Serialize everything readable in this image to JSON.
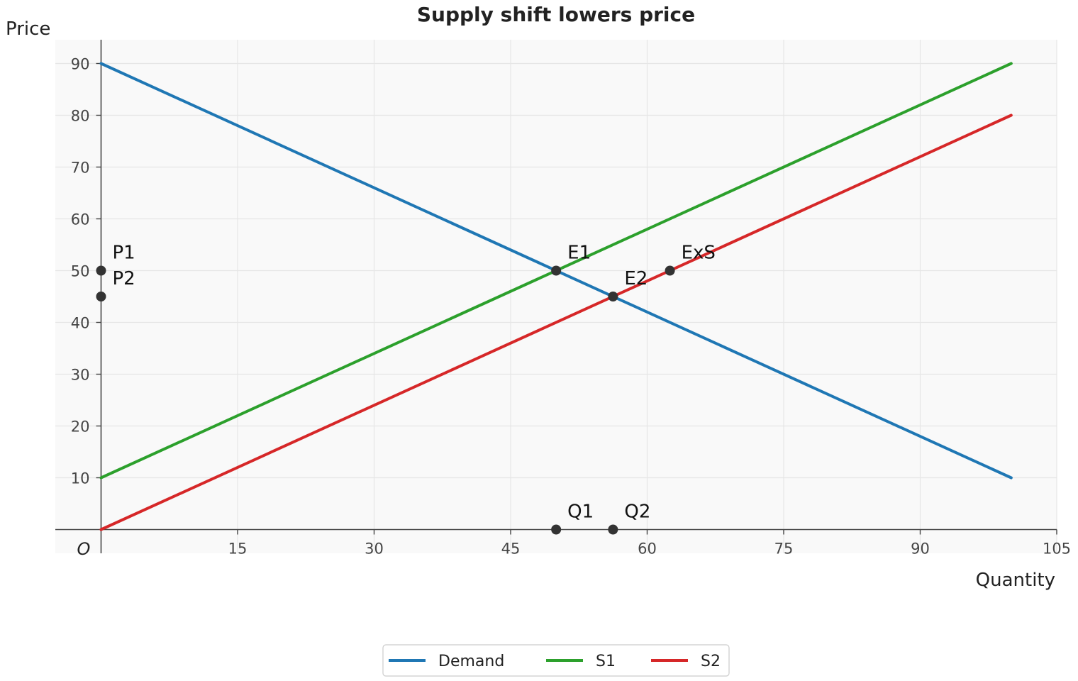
{
  "chart_data": {
    "type": "line",
    "title": "Supply shift lowers price",
    "xlabel": "Quantity",
    "ylabel": "Price",
    "origin_label": "O",
    "xlim": [
      0,
      105
    ],
    "ylim": [
      0,
      95
    ],
    "x_ticks": [
      15,
      30,
      45,
      60,
      75,
      90,
      105
    ],
    "y_ticks": [
      10,
      20,
      30,
      40,
      50,
      60,
      70,
      80,
      90
    ],
    "grid": true,
    "legend_position": "bottom-center",
    "series": [
      {
        "name": "Demand",
        "color": "#1f77b4",
        "x": [
          0,
          100
        ],
        "y": [
          90,
          10
        ]
      },
      {
        "name": "S1",
        "color": "#2ca02c",
        "x": [
          0,
          100
        ],
        "y": [
          10,
          90
        ]
      },
      {
        "name": "S2",
        "color": "#d62728",
        "x": [
          0,
          100
        ],
        "y": [
          0,
          80
        ]
      }
    ],
    "points": [
      {
        "label": "E1",
        "x": 50,
        "y": 50
      },
      {
        "label": "E2",
        "x": 56.25,
        "y": 45
      },
      {
        "label": "ExS",
        "x": 62.5,
        "y": 50
      },
      {
        "label": "P1",
        "x": 0,
        "y": 50
      },
      {
        "label": "P2",
        "x": 0,
        "y": 45
      },
      {
        "label": "Q1",
        "x": 50,
        "y": 0
      },
      {
        "label": "Q2",
        "x": 56.25,
        "y": 0
      }
    ],
    "colors": {
      "background": "#f9f9f9",
      "grid": "#e6e6e6",
      "axis": "#444444",
      "point": "#333333"
    }
  }
}
